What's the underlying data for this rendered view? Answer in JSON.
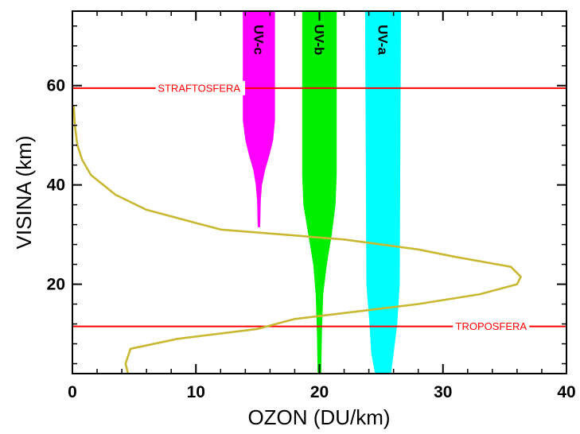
{
  "chart_data": {
    "type": "line",
    "xlabel": "OZON (DU/km)",
    "ylabel": "VISINA (km)",
    "xlim": [
      0,
      40
    ],
    "ylim": [
      2,
      75
    ],
    "x_ticks": [
      0,
      10,
      20,
      30,
      40
    ],
    "y_ticks": [
      20,
      40,
      60
    ],
    "grid": false,
    "ozone_profile": {
      "color": "#c8b832",
      "x": [
        4.5,
        4.3,
        4.7,
        8.5,
        15,
        18,
        28,
        33,
        36,
        36.3,
        35.5,
        31,
        28,
        22,
        12,
        6,
        3.5,
        1.5,
        0.8,
        0.4,
        0.2,
        0.1
      ],
      "y": [
        2,
        4,
        7,
        9,
        11,
        13,
        16,
        18,
        20,
        21.5,
        23.5,
        25.5,
        27,
        29,
        31,
        35,
        38,
        42,
        45,
        48,
        52,
        56
      ]
    },
    "bands": [
      {
        "label": "UV-c",
        "color": "#ff00ff",
        "y_bottom": 31.5,
        "profile": [
          {
            "y": 31.5,
            "x0": 15.0,
            "x1": 15.2
          },
          {
            "y": 37,
            "x0": 14.95,
            "x1": 15.25
          },
          {
            "y": 40,
            "x0": 14.85,
            "x1": 15.35
          },
          {
            "y": 43,
            "x0": 14.65,
            "x1": 15.6
          },
          {
            "y": 46,
            "x0": 14.3,
            "x1": 15.95
          },
          {
            "y": 49,
            "x0": 14.0,
            "x1": 16.25
          },
          {
            "y": 53,
            "x0": 13.8,
            "x1": 16.4
          },
          {
            "y": 75,
            "x0": 13.8,
            "x1": 16.4
          }
        ]
      },
      {
        "label": "UV-b",
        "color": "#00ee00",
        "y_bottom": 2,
        "profile": [
          {
            "y": 2,
            "x0": 19.85,
            "x1": 20.15
          },
          {
            "y": 10,
            "x0": 19.8,
            "x1": 20.2
          },
          {
            "y": 18,
            "x0": 19.7,
            "x1": 20.3
          },
          {
            "y": 24,
            "x0": 19.5,
            "x1": 20.6
          },
          {
            "y": 30,
            "x0": 19.1,
            "x1": 21.0
          },
          {
            "y": 36,
            "x0": 18.7,
            "x1": 21.3
          },
          {
            "y": 42,
            "x0": 18.6,
            "x1": 21.4
          },
          {
            "y": 75,
            "x0": 18.6,
            "x1": 21.4
          }
        ]
      },
      {
        "label": "UV-a",
        "color": "#00ffff",
        "y_bottom": 2,
        "profile": [
          {
            "y": 2,
            "x0": 24.5,
            "x1": 25.8
          },
          {
            "y": 6,
            "x0": 24.2,
            "x1": 26.0
          },
          {
            "y": 12,
            "x0": 24.05,
            "x1": 26.3
          },
          {
            "y": 20,
            "x0": 23.8,
            "x1": 26.5
          },
          {
            "y": 75,
            "x0": 23.7,
            "x1": 26.6
          }
        ]
      }
    ],
    "reference_lines": [
      {
        "label": "STRAFTOSFERA",
        "y": 59.5,
        "color": "#ff0000",
        "label_x": 13.6,
        "label_anchor": "end"
      },
      {
        "label": "TROPOSFERA",
        "y": 11.5,
        "color": "#ff0000",
        "label_x": 33.9,
        "label_anchor": "middle"
      }
    ]
  }
}
